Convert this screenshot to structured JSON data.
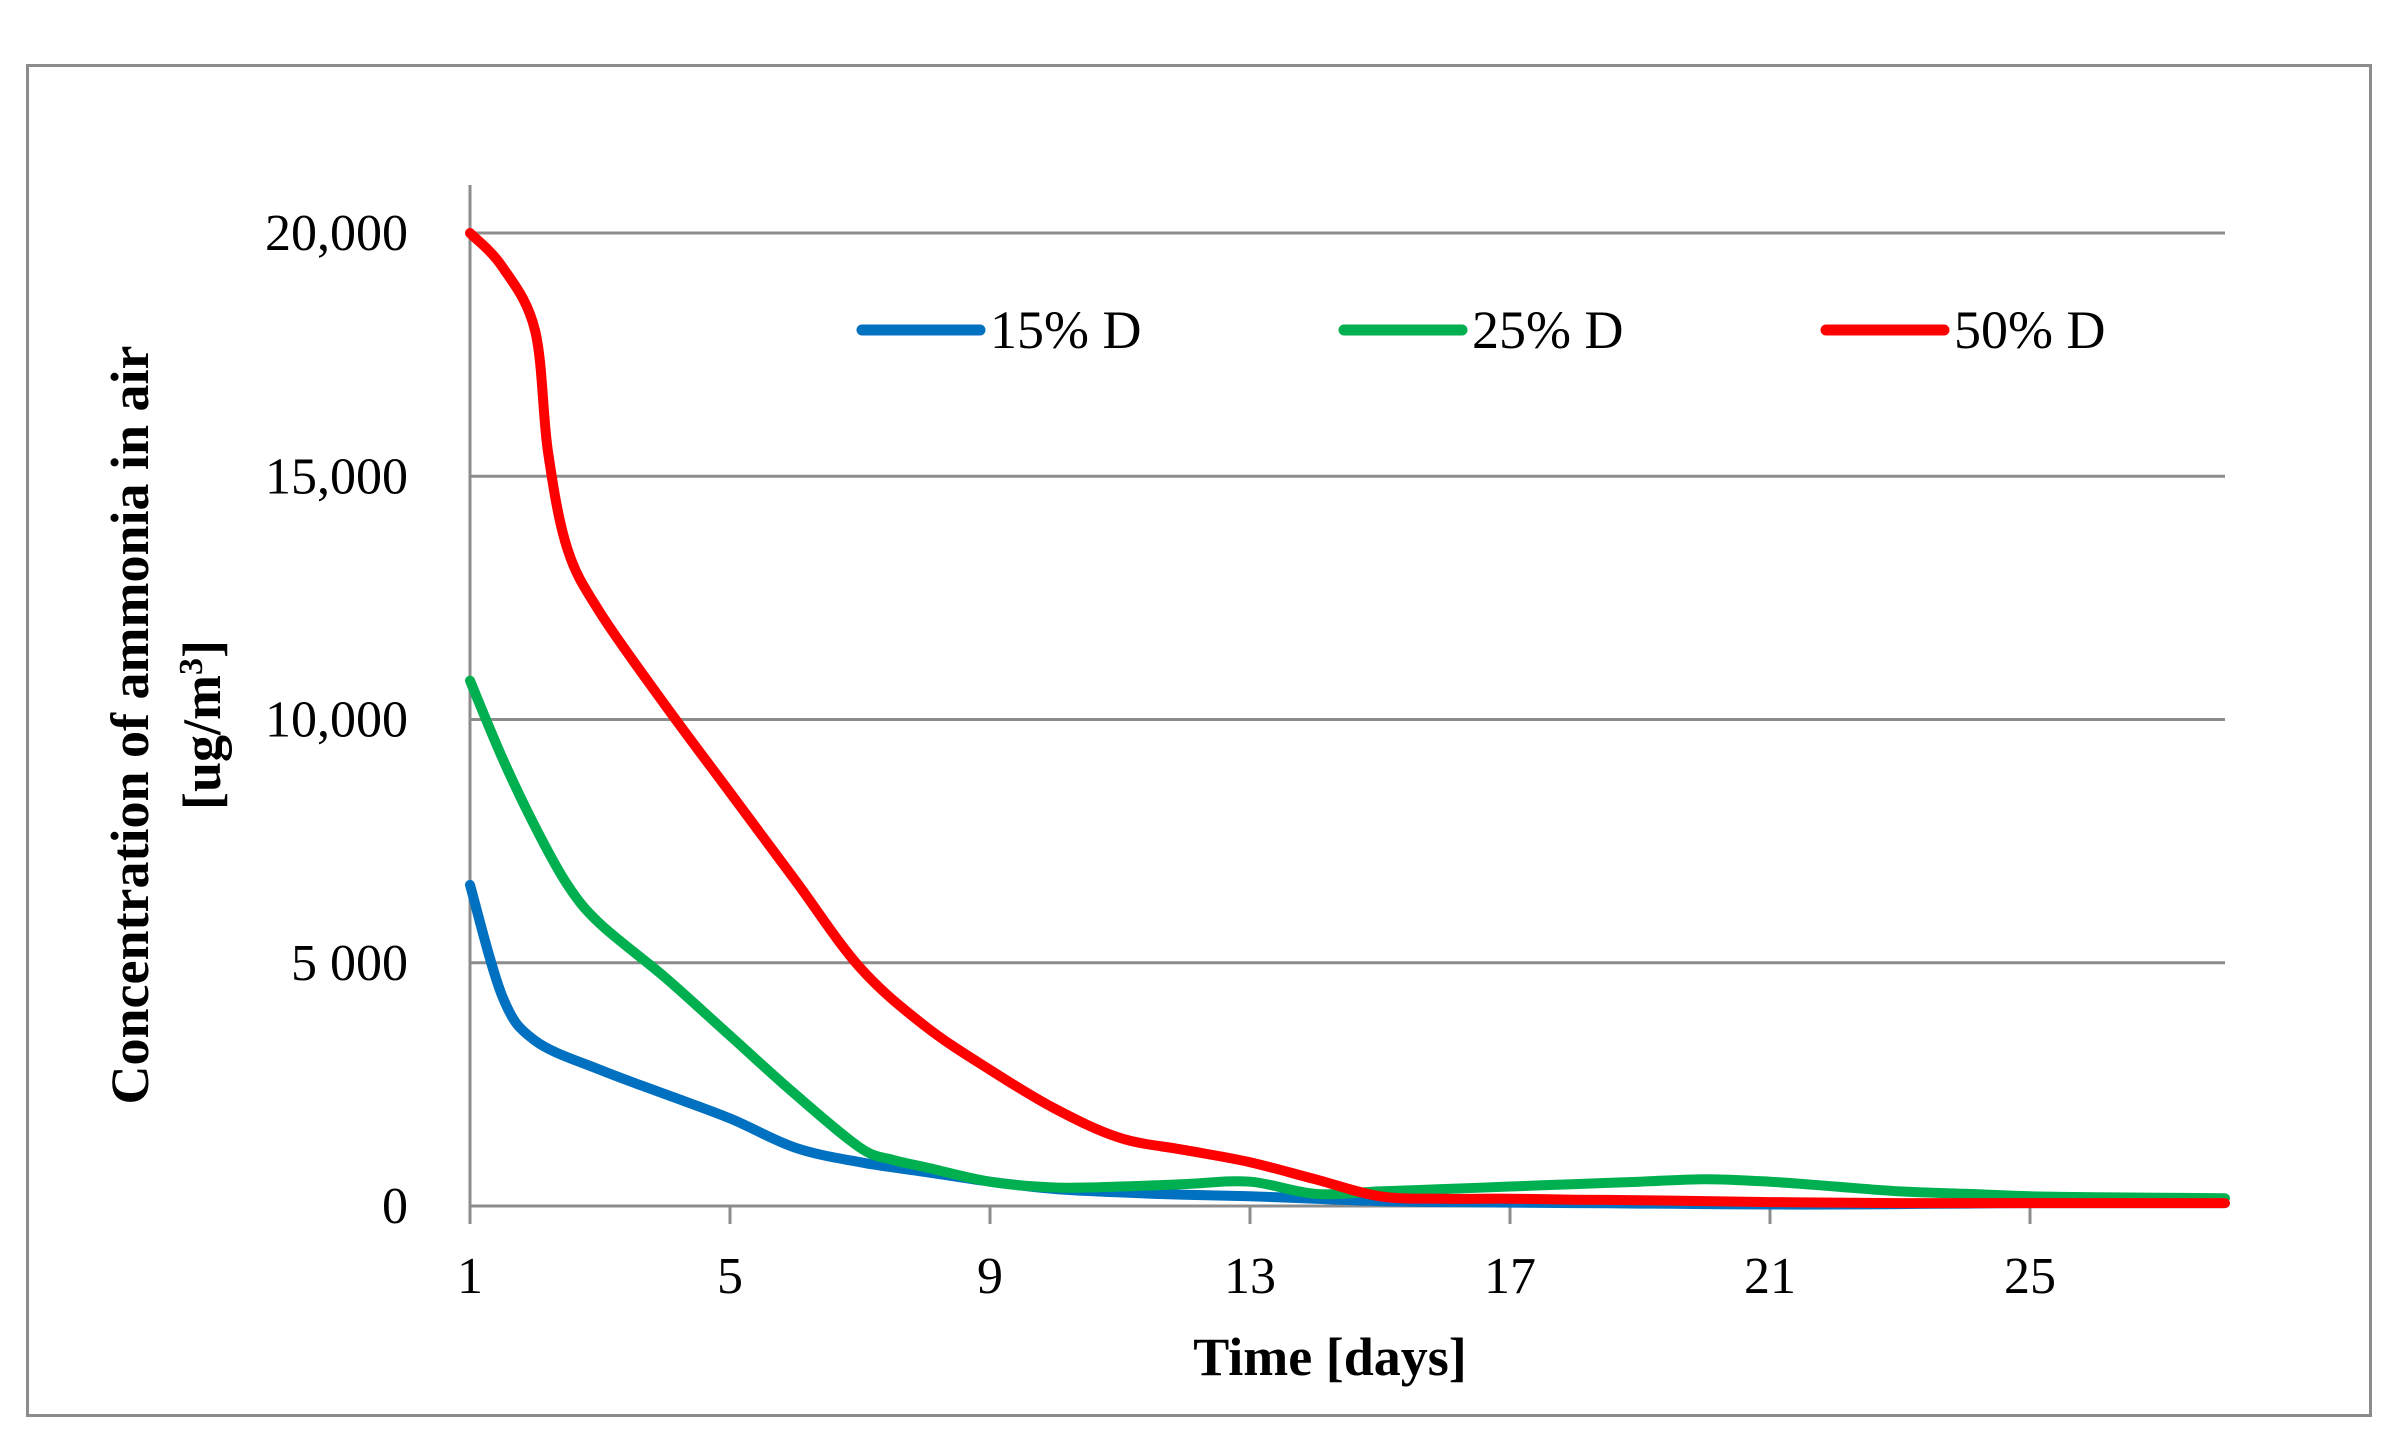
{
  "chart_data": {
    "type": "line",
    "title": "",
    "xlabel": "Time [days]",
    "ylabel_line1": "Concentration of ammonia in air",
    "ylabel_line2_prefix": "[ug/m",
    "ylabel_line2_sup": "3",
    "ylabel_line2_suffix": "]",
    "xlim": [
      1,
      28
    ],
    "ylim": [
      0,
      20000
    ],
    "x_ticks": [
      1,
      5,
      9,
      13,
      17,
      21,
      25
    ],
    "x_tick_labels": [
      "1",
      "5",
      "9",
      "13",
      "17",
      "21",
      "25"
    ],
    "y_ticks": [
      0,
      5000,
      10000,
      15000,
      20000
    ],
    "y_tick_labels": [
      "0",
      "5 000",
      "10,000",
      "15,000",
      "20,000"
    ],
    "grid": "horizontal",
    "legend_position": "top",
    "series": [
      {
        "name": "15% D",
        "color": "#0070c0",
        "x": [
          1,
          1.5,
          2,
          3,
          4,
          5,
          6,
          7,
          8,
          9,
          10,
          11,
          12,
          13,
          14,
          15,
          16,
          17,
          18,
          19,
          20,
          21,
          22,
          23,
          24,
          25,
          26,
          27,
          28
        ],
        "y": [
          6600,
          4300,
          3400,
          2800,
          2300,
          1800,
          1200,
          900,
          700,
          500,
          350,
          280,
          230,
          200,
          150,
          100,
          80,
          70,
          60,
          50,
          40,
          30,
          30,
          40,
          50,
          60,
          60,
          60,
          60
        ]
      },
      {
        "name": "25% D",
        "color": "#00b050",
        "x": [
          1,
          1.5,
          2,
          2.5,
          3,
          4,
          5,
          6,
          7,
          7.5,
          8,
          9,
          10,
          11,
          12,
          13,
          14,
          15,
          16,
          17,
          18,
          19,
          20,
          21,
          22,
          23,
          24,
          25,
          26,
          27,
          28
        ],
        "y": [
          10800,
          9200,
          7800,
          6600,
          5800,
          4700,
          3500,
          2300,
          1200,
          950,
          800,
          500,
          380,
          400,
          450,
          500,
          250,
          300,
          350,
          400,
          450,
          500,
          550,
          500,
          400,
          300,
          250,
          200,
          180,
          170,
          160
        ]
      },
      {
        "name": "50% D",
        "color": "#ff0000",
        "x": [
          1,
          1.5,
          2,
          2.2,
          2.5,
          3,
          4,
          5,
          6,
          7,
          8,
          9,
          10,
          11,
          12,
          13,
          14,
          15,
          16,
          17,
          18,
          19,
          20,
          21,
          22,
          23,
          24,
          25,
          26,
          27,
          28
        ],
        "y": [
          20000,
          19300,
          18000,
          15500,
          13500,
          12200,
          10300,
          8500,
          6700,
          4900,
          3700,
          2800,
          2000,
          1400,
          1150,
          900,
          550,
          200,
          150,
          150,
          130,
          120,
          100,
          80,
          70,
          60,
          60,
          60,
          60,
          60,
          60
        ]
      }
    ]
  }
}
